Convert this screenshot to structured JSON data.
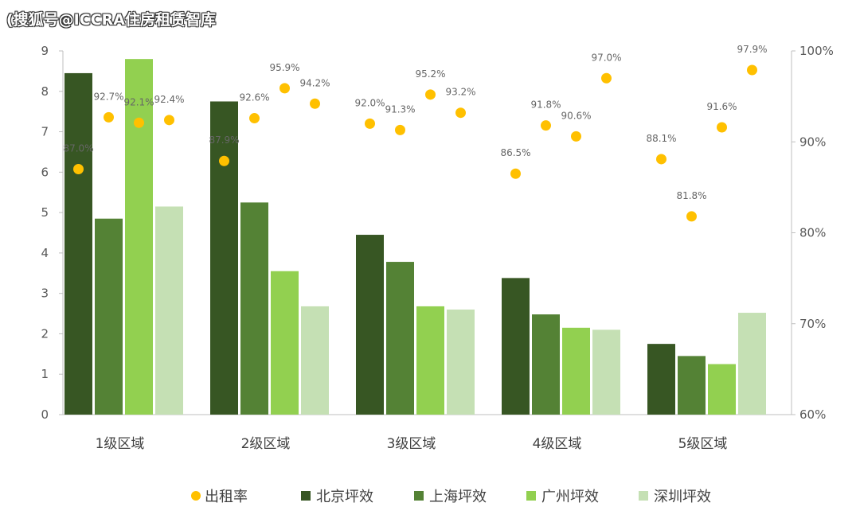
{
  "watermark": "(搜狐号@ICCRA住房租赁智库",
  "chart_data": {
    "type": "bar",
    "categories": [
      "1级区域",
      "2级区域",
      "3级区域",
      "4级区域",
      "5级区域"
    ],
    "series": [
      {
        "name": "北京坪效",
        "color": "#375623",
        "values": [
          8.45,
          7.75,
          4.45,
          3.38,
          1.75
        ]
      },
      {
        "name": "上海坪效",
        "color": "#548235",
        "values": [
          4.85,
          5.25,
          3.78,
          2.48,
          1.45
        ]
      },
      {
        "name": "广州坪效",
        "color": "#92d050",
        "values": [
          8.8,
          3.55,
          2.68,
          2.15,
          1.25
        ]
      },
      {
        "name": "深圳坪效",
        "color": "#c5e0b4",
        "values": [
          5.15,
          2.68,
          2.6,
          2.1,
          2.52
        ]
      }
    ],
    "line_series": {
      "name": "出租率",
      "color": "#ffc000",
      "axis": "right",
      "values": [
        [
          87.0,
          92.7,
          92.1,
          92.4
        ],
        [
          87.9,
          92.6,
          95.9,
          94.2
        ],
        [
          92.0,
          91.3,
          95.2,
          93.2
        ],
        [
          86.5,
          91.8,
          90.6,
          97.0
        ],
        [
          88.1,
          81.8,
          91.6,
          97.9
        ]
      ],
      "labels": [
        [
          "87.0%",
          "92.7%",
          "92.1%",
          "92.4%"
        ],
        [
          "87.9%",
          "92.6%",
          "95.9%",
          "94.2%"
        ],
        [
          "92.0%",
          "91.3%",
          "95.2%",
          "93.2%"
        ],
        [
          "86.5%",
          "91.8%",
          "90.6%",
          "97.0%"
        ],
        [
          "88.1%",
          "81.8%",
          "91.6%",
          "97.9%"
        ]
      ]
    },
    "y_left": {
      "min": 0,
      "max": 9,
      "ticks": [
        "0",
        "1",
        "2",
        "3",
        "4",
        "5",
        "6",
        "7",
        "8",
        "9"
      ]
    },
    "y_right": {
      "min": 60,
      "max": 100,
      "ticks": [
        "60%",
        "70%",
        "80%",
        "90%",
        "100%"
      ]
    },
    "legend_position": "bottom"
  }
}
